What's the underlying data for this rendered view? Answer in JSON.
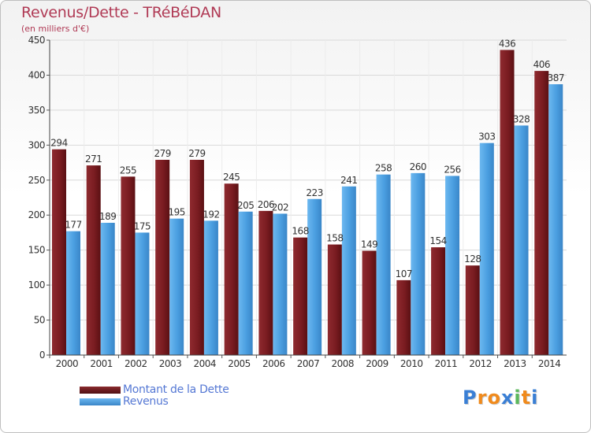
{
  "header": {
    "title": "Revenus/Dette - TRéBéDAN",
    "subtitle": "(en milliers d'€)"
  },
  "chart_data": {
    "type": "bar",
    "categories": [
      "2000",
      "2001",
      "2002",
      "2003",
      "2004",
      "2005",
      "2006",
      "2007",
      "2008",
      "2009",
      "2010",
      "2011",
      "2012",
      "2013",
      "2014"
    ],
    "series": [
      {
        "name": "Montant de la Dette",
        "values": [
          294,
          271,
          255,
          279,
          279,
          245,
          206,
          168,
          158,
          149,
          107,
          154,
          128,
          436,
          406
        ],
        "color": "#7b1e22"
      },
      {
        "name": "Revenus",
        "values": [
          177,
          189,
          175,
          195,
          192,
          205,
          202,
          223,
          241,
          258,
          260,
          256,
          303,
          328,
          387
        ],
        "color": "#4a9ee0"
      }
    ],
    "yticks": [
      "0",
      "50",
      "100",
      "150",
      "200",
      "250",
      "300",
      "350",
      "400",
      "450"
    ],
    "ylim": [
      0,
      450
    ],
    "grid": true
  },
  "legend": {
    "items": [
      {
        "label": "Montant de la Dette",
        "color": "#6b1a1e"
      },
      {
        "label": "Revenus",
        "color": "#4a9ee0"
      }
    ]
  },
  "logo": {
    "letters": [
      "P",
      "r",
      "o",
      "x",
      "i",
      "t",
      "i"
    ],
    "colors": [
      "#3a7fd5",
      "#f08a1c",
      "#f08a1c",
      "#3a7fd5",
      "#5cb85c",
      "#f08a1c",
      "#3a7fd5"
    ]
  }
}
